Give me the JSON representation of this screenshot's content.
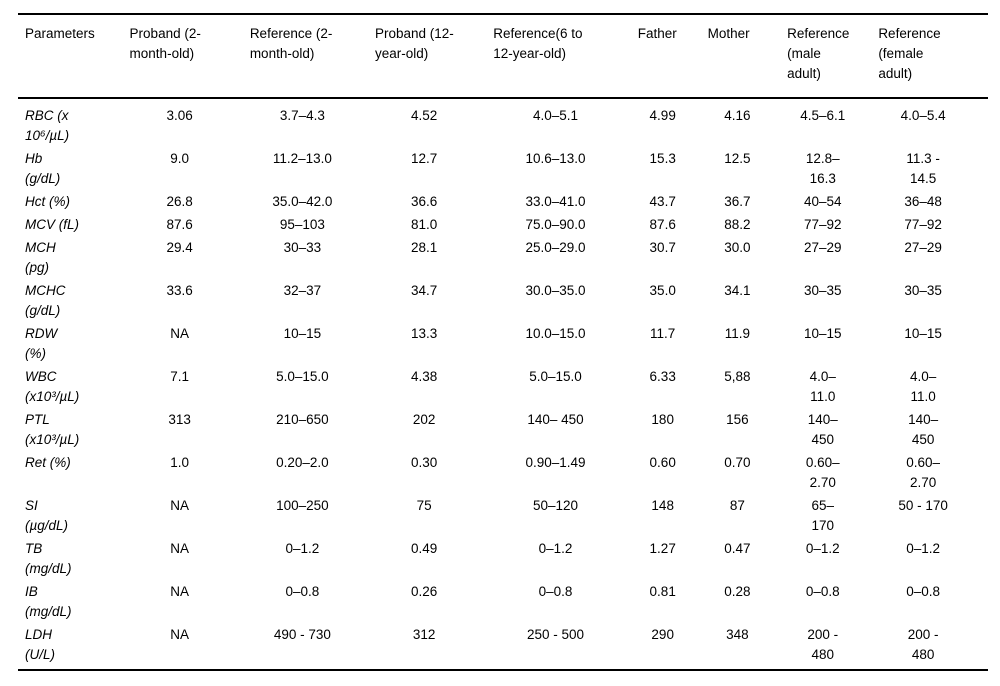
{
  "table": {
    "columns": [
      {
        "id": "parameters",
        "label": "Parameters"
      },
      {
        "id": "proband-2mo",
        "label": "Proband (2-\nmonth-old)"
      },
      {
        "id": "reference-2mo",
        "label": "Reference (2-\nmonth-old)"
      },
      {
        "id": "proband-12y",
        "label": "Proband (12-\nyear-old)"
      },
      {
        "id": "reference-6-12y",
        "label": "Reference(6 to\n12-year-old)"
      },
      {
        "id": "father",
        "label": "Father"
      },
      {
        "id": "mother",
        "label": "Mother"
      },
      {
        "id": "reference-male-adult",
        "label": "Reference\n(male\nadult)"
      },
      {
        "id": "reference-female-adult",
        "label": "Reference\n(female\nadult)"
      }
    ],
    "rows": [
      {
        "param": "RBC (x\n10⁶/µL)",
        "values": [
          "3.06",
          "3.7–4.3",
          "4.52",
          "4.0–5.1",
          "4.99",
          "4.16",
          "4.5–6.1",
          "4.0–5.4"
        ]
      },
      {
        "param": "Hb\n(g/dL)",
        "values": [
          "9.0",
          "11.2–13.0",
          "12.7",
          "10.6–13.0",
          "15.3",
          "12.5",
          "12.8–\n16.3",
          "11.3 -\n14.5"
        ]
      },
      {
        "param": "Hct (%)",
        "values": [
          "26.8",
          "35.0–42.0",
          "36.6",
          "33.0–41.0",
          "43.7",
          "36.7",
          "40–54",
          "36–48"
        ]
      },
      {
        "param": "MCV (fL)",
        "values": [
          "87.6",
          "95–103",
          "81.0",
          "75.0–90.0",
          "87.6",
          "88.2",
          "77–92",
          "77–92"
        ]
      },
      {
        "param": "MCH\n(pg)",
        "values": [
          "29.4",
          "30–33",
          "28.1",
          "25.0–29.0",
          "30.7",
          "30.0",
          "27–29",
          "27–29"
        ]
      },
      {
        "param": "MCHC\n(g/dL)",
        "values": [
          "33.6",
          "32–37",
          "34.7",
          "30.0–35.0",
          "35.0",
          "34.1",
          "30–35",
          "30–35"
        ]
      },
      {
        "param": "RDW\n(%)",
        "values": [
          "NA",
          "10–15",
          "13.3",
          "10.0–15.0",
          "11.7",
          "11.9",
          "10–15",
          "10–15"
        ]
      },
      {
        "param": "WBC\n(x10³/µL)",
        "values": [
          "7.1",
          "5.0–15.0",
          "4.38",
          "5.0–15.0",
          "6.33",
          "5,88",
          "4.0–\n11.0",
          "4.0–\n11.0"
        ]
      },
      {
        "param": "PTL\n(x10³/µL)",
        "values": [
          "313",
          "210–650",
          "202",
          "140– 450",
          "180",
          "156",
          "140–\n450",
          "140–\n450"
        ]
      },
      {
        "param": "Ret (%)",
        "values": [
          "1.0",
          "0.20–2.0",
          "0.30",
          "0.90–1.49",
          "0.60",
          "0.70",
          "0.60–\n2.70",
          "0.60–\n2.70"
        ]
      },
      {
        "param": "SI\n(µg/dL)",
        "values": [
          "NA",
          "100–250",
          "75",
          "50–120",
          "148",
          "87",
          "65–\n170",
          "50 - 170"
        ]
      },
      {
        "param": "TB\n(mg/dL)",
        "values": [
          "NA",
          "0–1.2",
          "0.49",
          "0–1.2",
          "1.27",
          "0.47",
          "0–1.2",
          "0–1.2"
        ]
      },
      {
        "param": "IB\n(mg/dL)",
        "values": [
          "NA",
          "0–0.8",
          "0.26",
          "0–0.8",
          "0.81",
          "0.28",
          "0–0.8",
          "0–0.8"
        ]
      },
      {
        "param": "LDH\n(U/L)",
        "values": [
          "NA",
          "490 - 730",
          "312",
          "250 - 500",
          "290",
          "348",
          "200 -\n480",
          "200 -\n480"
        ]
      }
    ]
  }
}
